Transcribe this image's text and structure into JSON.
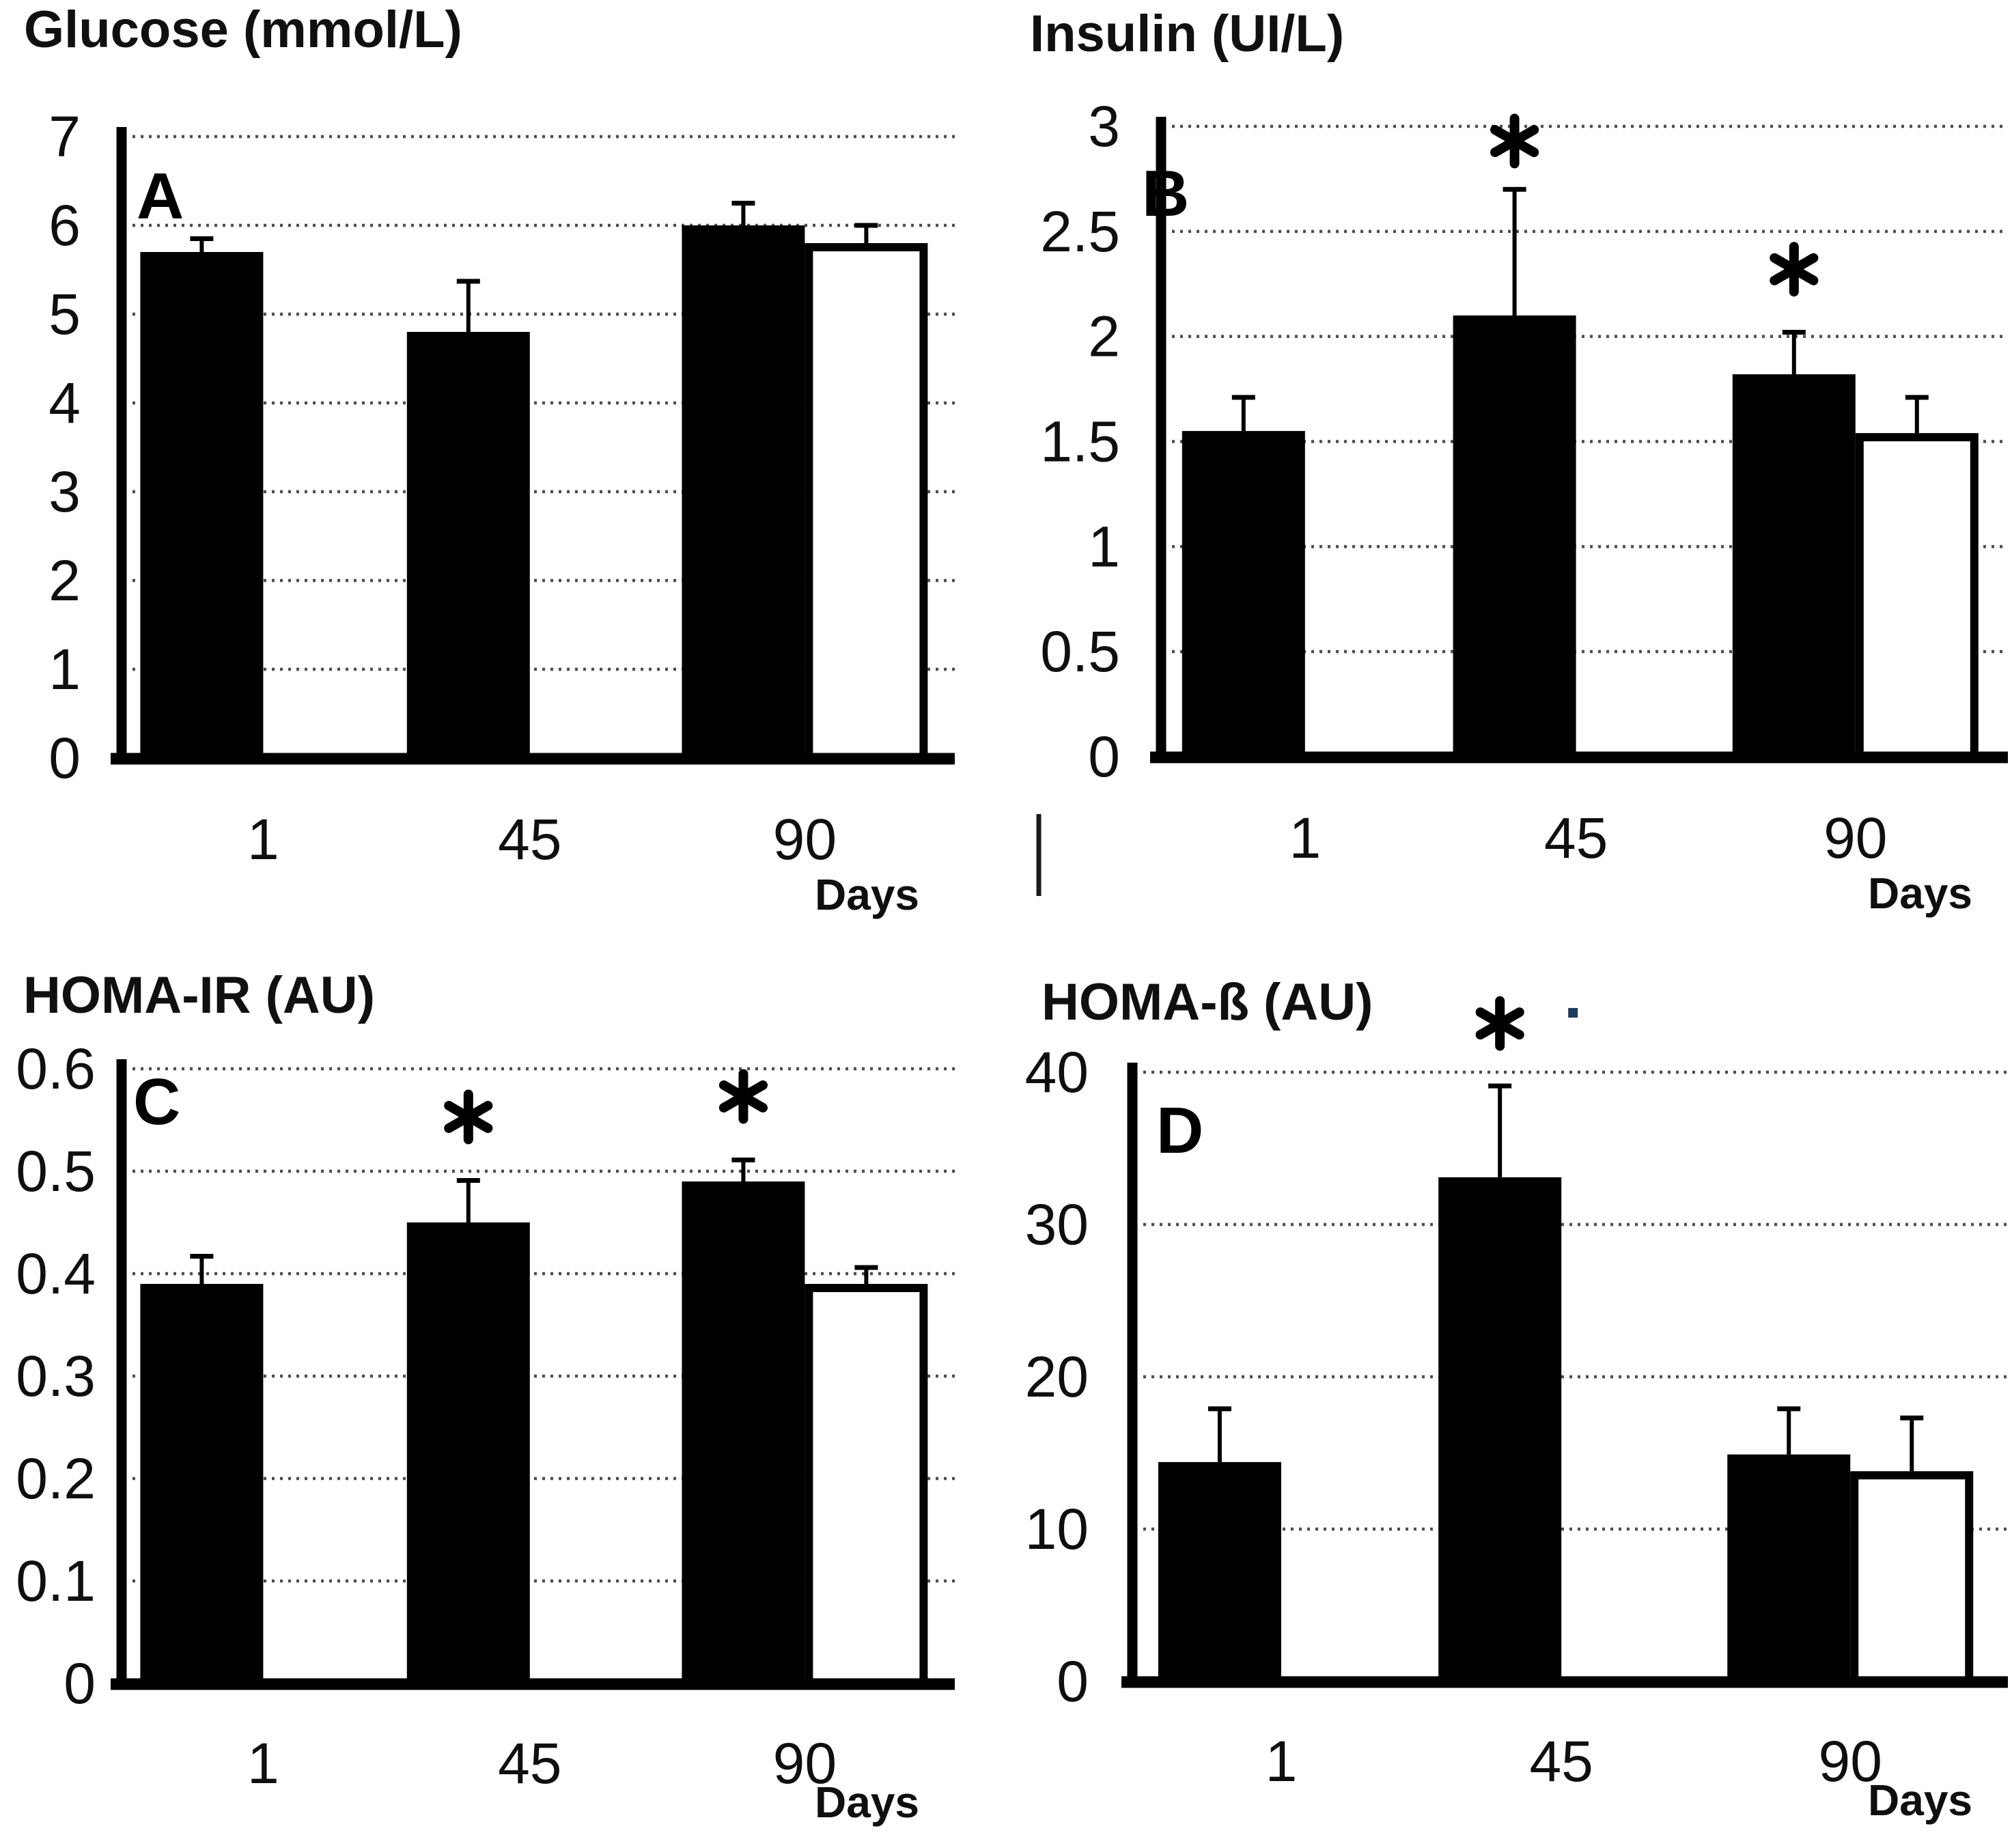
{
  "colors": {
    "bar_black": "#000000",
    "bar_white_fill": "#ffffff",
    "bar_outline": "#000000",
    "grid": "#4d4d4d",
    "text": "#0f0f0f",
    "axis": "#000000",
    "annotation_dot": "#1e3a5e"
  },
  "chart_data": [
    {
      "panel": "A",
      "panel_letter": "A",
      "type": "bar",
      "title": "Glucose (mmol/L)",
      "xlabel": "Days",
      "categories": [
        "1",
        "45",
        "90"
      ],
      "ylim": [
        0,
        7
      ],
      "grid": "dotted-horizontal",
      "legend": "none",
      "yticks": [
        {
          "v": 0,
          "label": "0"
        },
        {
          "v": 1,
          "label": "1"
        },
        {
          "v": 2,
          "label": "2"
        },
        {
          "v": 3,
          "label": "3"
        },
        {
          "v": 4,
          "label": "4"
        },
        {
          "v": 5,
          "label": "5"
        },
        {
          "v": 6,
          "label": "6"
        },
        {
          "v": 7,
          "label": "7"
        }
      ],
      "series": [
        {
          "name": "filled black bars",
          "fill": "black",
          "values": [
            5.7,
            4.8,
            6.0
          ],
          "error_top": [
            5.85,
            5.37,
            6.25
          ]
        },
        {
          "name": "open white bars",
          "fill": "white",
          "values": [
            null,
            null,
            5.8
          ],
          "error_top": [
            null,
            null,
            6.0
          ]
        }
      ],
      "annotations": []
    },
    {
      "panel": "B",
      "panel_letter": "B",
      "type": "bar",
      "title": "Insulin (UI/L)",
      "xlabel": "Days",
      "categories": [
        "1",
        "45",
        "90"
      ],
      "ylim": [
        0,
        3
      ],
      "grid": "dotted-horizontal",
      "legend": "none",
      "yticks": [
        {
          "v": 0,
          "label": "0"
        },
        {
          "v": 0.5,
          "label": "0.5"
        },
        {
          "v": 1,
          "label": "1"
        },
        {
          "v": 1.5,
          "label": "1.5"
        },
        {
          "v": 2,
          "label": "2"
        },
        {
          "v": 2.5,
          "label": "2.5"
        },
        {
          "v": 3,
          "label": "3"
        }
      ],
      "series": [
        {
          "name": "filled black bars",
          "fill": "black",
          "values": [
            1.55,
            2.1,
            1.82
          ],
          "error_top": [
            1.71,
            2.7,
            2.02
          ]
        },
        {
          "name": "open white bars",
          "fill": "white",
          "values": [
            null,
            null,
            1.54
          ],
          "error_top": [
            null,
            null,
            1.71
          ]
        }
      ],
      "annotations": [
        {
          "type": "asterisk",
          "category_index": 1,
          "value": 2.93
        },
        {
          "type": "asterisk",
          "category_index": 2,
          "value": 2.32
        }
      ]
    },
    {
      "panel": "C",
      "panel_letter": "C",
      "type": "bar",
      "title": "HOMA-IR (AU)",
      "xlabel": "Days",
      "categories": [
        "1",
        "45",
        "90"
      ],
      "ylim": [
        0,
        0.6
      ],
      "grid": "dotted-horizontal",
      "legend": "none",
      "yticks": [
        {
          "v": 0,
          "label": "0"
        },
        {
          "v": 0.1,
          "label": "0.1"
        },
        {
          "v": 0.2,
          "label": "0.2"
        },
        {
          "v": 0.3,
          "label": "0.3"
        },
        {
          "v": 0.4,
          "label": "0.4"
        },
        {
          "v": 0.5,
          "label": "0.5"
        },
        {
          "v": 0.6,
          "label": "0.6"
        }
      ],
      "series": [
        {
          "name": "filled black bars",
          "fill": "black",
          "values": [
            0.39,
            0.45,
            0.49
          ],
          "error_top": [
            0.417,
            0.491,
            0.511
          ]
        },
        {
          "name": "open white bars",
          "fill": "white",
          "values": [
            null,
            null,
            0.39
          ],
          "error_top": [
            null,
            null,
            0.406
          ]
        }
      ],
      "annotations": [
        {
          "type": "asterisk",
          "category_index": 1,
          "value": 0.553
        },
        {
          "type": "asterisk",
          "category_index": 2,
          "value": 0.573
        }
      ]
    },
    {
      "panel": "D",
      "panel_letter": "D",
      "type": "bar",
      "title": "HOMA-ß (AU)",
      "xlabel": "Days",
      "categories": [
        "1",
        "45",
        "90"
      ],
      "ylim": [
        0,
        40
      ],
      "grid": "dotted-horizontal",
      "legend": "none",
      "yticks": [
        {
          "v": 0,
          "label": "0"
        },
        {
          "v": 10,
          "label": "10"
        },
        {
          "v": 20,
          "label": "20"
        },
        {
          "v": 30,
          "label": "30"
        },
        {
          "v": 40,
          "label": "40"
        }
      ],
      "series": [
        {
          "name": "filled black bars",
          "fill": "black",
          "values": [
            14.4,
            33.1,
            14.9
          ],
          "error_top": [
            17.9,
            39.1,
            17.9
          ]
        },
        {
          "name": "open white bars",
          "fill": "white",
          "values": [
            null,
            null,
            13.8
          ],
          "error_top": [
            null,
            null,
            17.3
          ]
        }
      ],
      "annotations": [
        {
          "type": "asterisk",
          "category_index": 1,
          "value": 43.2
        },
        {
          "type": "dot",
          "category_index": 1,
          "value": 43.9,
          "dx": 107
        }
      ]
    }
  ]
}
